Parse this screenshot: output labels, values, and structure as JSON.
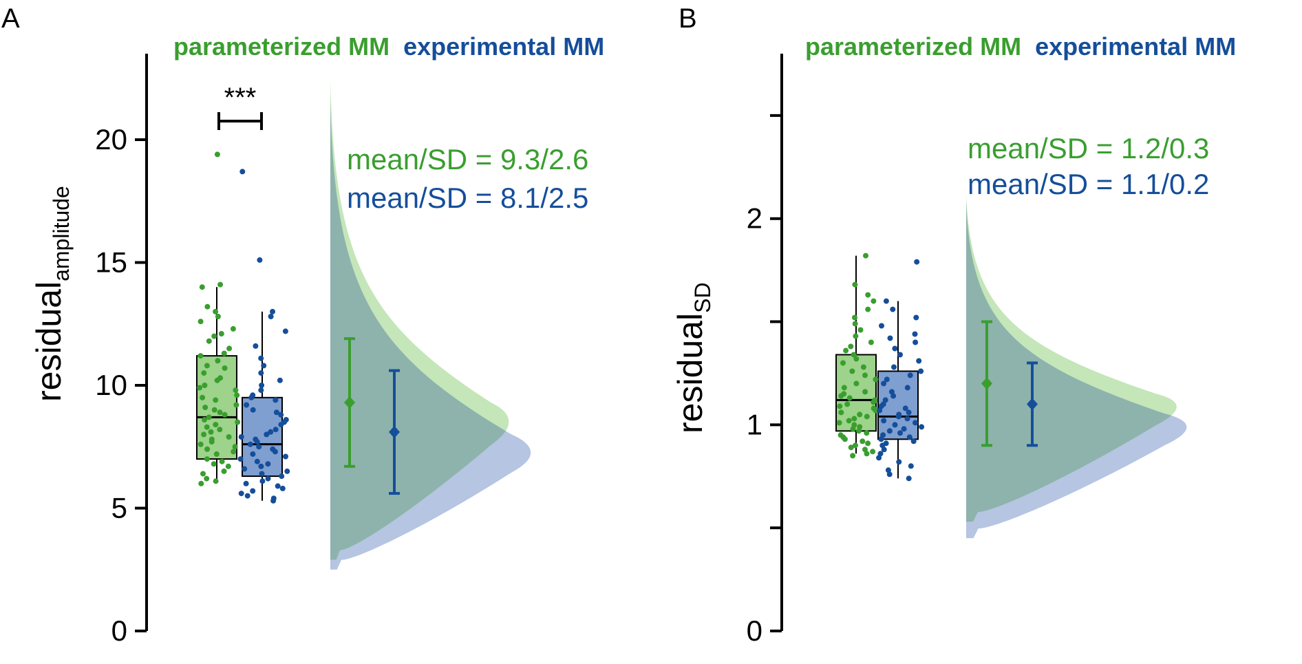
{
  "colors": {
    "green": "#3a9e2f",
    "blue": "#154e9a",
    "green_fill": "#9dd38b",
    "blue_fill": "#7f9fd1",
    "green_density": "#c4e6b9",
    "blue_density": "#b5c5e2",
    "overlap_density": "#8db3ac"
  },
  "chart_data": [
    {
      "type": "raincloud",
      "panel_label": "A",
      "legend": {
        "parameterized": "parameterized MM",
        "experimental": "experimental MM"
      },
      "ylabel": {
        "main": "residual",
        "sub": "amplitude"
      },
      "ylim": [
        0,
        23.5
      ],
      "yticks": [
        0,
        5,
        10,
        15,
        20
      ],
      "significance": "***",
      "series": [
        {
          "name": "parameterized MM",
          "box": {
            "q1": 7.0,
            "median": 8.7,
            "q3": 11.2,
            "whisker_low": 6.1,
            "whisker_high": 14.0
          },
          "points": [
            19.4,
            14.1,
            14.0,
            13.2,
            13.0,
            12.8,
            12.6,
            12.3,
            12.1,
            12.0,
            11.8,
            11.5,
            11.3,
            11.2,
            11.0,
            10.8,
            10.7,
            10.5,
            10.3,
            10.2,
            10.0,
            9.9,
            9.8,
            9.6,
            9.5,
            9.4,
            9.2,
            9.1,
            9.0,
            8.9,
            8.8,
            8.7,
            8.6,
            8.5,
            8.4,
            8.3,
            8.2,
            8.1,
            8.0,
            7.9,
            7.8,
            7.7,
            7.6,
            7.5,
            7.4,
            7.3,
            7.2,
            7.0,
            6.9,
            6.8,
            6.7,
            6.5,
            6.4,
            6.2,
            6.1,
            6.0
          ],
          "mean": 9.3,
          "sd": 2.6,
          "summary": "mean/SD = 9.3/2.6"
        },
        {
          "name": "experimental MM",
          "box": {
            "q1": 6.3,
            "median": 7.6,
            "q3": 9.5,
            "whisker_low": 5.3,
            "whisker_high": 13.0
          },
          "points": [
            18.7,
            15.1,
            13.0,
            12.8,
            12.2,
            11.6,
            11.1,
            10.8,
            10.5,
            10.2,
            10.0,
            9.8,
            9.6,
            9.5,
            9.4,
            9.2,
            9.0,
            8.9,
            8.8,
            8.6,
            8.5,
            8.4,
            8.2,
            8.1,
            8.0,
            7.9,
            7.8,
            7.7,
            7.6,
            7.5,
            7.4,
            7.3,
            7.2,
            7.1,
            7.0,
            6.9,
            6.8,
            6.7,
            6.6,
            6.5,
            6.4,
            6.3,
            6.2,
            6.1,
            6.0,
            5.9,
            5.8,
            5.7,
            5.6,
            5.5,
            5.4,
            5.3
          ],
          "mean": 8.1,
          "sd": 2.5,
          "summary": "mean/SD = 8.1/2.5"
        }
      ],
      "density": {
        "green": {
          "ymin": 2.9,
          "ymax": 22.5,
          "peak_y": 8.6
        },
        "blue": {
          "ymin": 2.5,
          "ymax": 21.6,
          "peak_y": 7.3
        }
      }
    },
    {
      "type": "raincloud",
      "panel_label": "B",
      "legend": {
        "parameterized": "parameterized MM",
        "experimental": "experimental MM"
      },
      "ylabel": {
        "main": "residual",
        "sub": "SD"
      },
      "ylim": [
        0,
        2.8
      ],
      "yticks": [
        0,
        1,
        2
      ],
      "yminor": [
        0.5,
        1.5,
        2.5
      ],
      "significance": "",
      "series": [
        {
          "name": "parameterized MM",
          "box": {
            "q1": 0.97,
            "median": 1.12,
            "q3": 1.34,
            "whisker_low": 0.86,
            "whisker_high": 1.82
          },
          "points": [
            1.82,
            1.68,
            1.63,
            1.6,
            1.56,
            1.52,
            1.49,
            1.46,
            1.43,
            1.4,
            1.38,
            1.36,
            1.34,
            1.32,
            1.3,
            1.28,
            1.26,
            1.24,
            1.22,
            1.2,
            1.18,
            1.16,
            1.15,
            1.14,
            1.13,
            1.12,
            1.11,
            1.1,
            1.09,
            1.08,
            1.07,
            1.06,
            1.05,
            1.04,
            1.03,
            1.02,
            1.01,
            1.0,
            0.99,
            0.98,
            0.97,
            0.96,
            0.95,
            0.94,
            0.93,
            0.92,
            0.91,
            0.9,
            0.89,
            0.88,
            0.87,
            0.86,
            0.85
          ],
          "mean": 1.2,
          "sd": 0.3,
          "summary": "mean/SD = 1.2/0.3"
        },
        {
          "name": "experimental MM",
          "box": {
            "q1": 0.93,
            "median": 1.04,
            "q3": 1.26,
            "whisker_low": 0.74,
            "whisker_high": 1.6
          },
          "points": [
            1.79,
            1.6,
            1.56,
            1.52,
            1.48,
            1.44,
            1.42,
            1.4,
            1.37,
            1.34,
            1.31,
            1.28,
            1.26,
            1.24,
            1.22,
            1.2,
            1.18,
            1.16,
            1.14,
            1.12,
            1.1,
            1.09,
            1.08,
            1.07,
            1.06,
            1.05,
            1.04,
            1.03,
            1.02,
            1.01,
            1.0,
            0.99,
            0.98,
            0.97,
            0.96,
            0.95,
            0.94,
            0.93,
            0.92,
            0.91,
            0.9,
            0.88,
            0.86,
            0.84,
            0.82,
            0.8,
            0.78,
            0.76,
            0.74
          ],
          "mean": 1.1,
          "sd": 0.2,
          "summary": "mean/SD = 1.1/0.2"
        }
      ],
      "density": {
        "green": {
          "ymin": 0.53,
          "ymax": 2.12,
          "peak_y": 1.1
        },
        "blue": {
          "ymin": 0.45,
          "ymax": 2.08,
          "peak_y": 1.0
        }
      }
    }
  ]
}
